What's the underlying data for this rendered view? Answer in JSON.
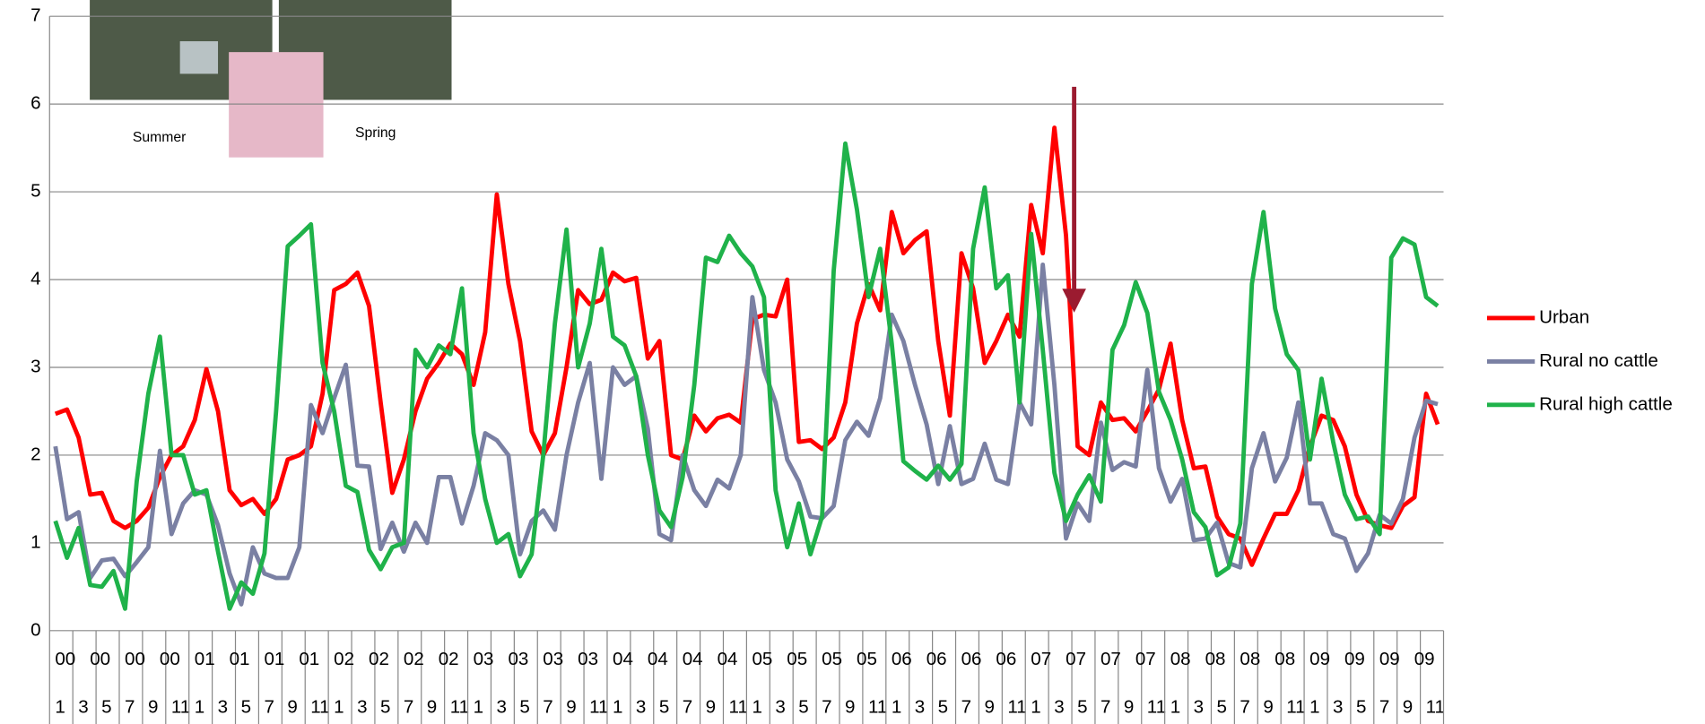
{
  "chart_data": {
    "type": "line",
    "annotations": [
      "Summer",
      "Spring"
    ],
    "x_labels_top": [
      "00",
      "00",
      "00",
      "00",
      "01",
      "01",
      "01",
      "01",
      "02",
      "02",
      "02",
      "02",
      "03",
      "03",
      "03",
      "03",
      "04",
      "04",
      "04",
      "04",
      "05",
      "05",
      "05",
      "05",
      "06",
      "06",
      "06",
      "06",
      "07",
      "07",
      "07",
      "07",
      "08",
      "08",
      "08",
      "08",
      "09",
      "09",
      "09",
      "09"
    ],
    "x_labels_bottom": [
      "1",
      "3",
      "5",
      "7",
      "9",
      "11",
      "1",
      "3",
      "5",
      "7",
      "9",
      "11",
      "1",
      "3",
      "5",
      "7",
      "9",
      "11",
      "1",
      "3",
      "5",
      "7",
      "9",
      "11",
      "1",
      "3",
      "5",
      "7",
      "9",
      "11",
      "1",
      "3",
      "5",
      "7",
      "9",
      "11",
      "1",
      "3",
      "5",
      "7",
      "9",
      "11",
      "1",
      "3",
      "5",
      "7",
      "9",
      "11",
      "1",
      "3",
      "5",
      "7",
      "9",
      "11",
      "1",
      "3",
      "5",
      "7",
      "9",
      "11"
    ],
    "ylim": [
      0,
      7
    ],
    "yticks": [
      0,
      1,
      2,
      3,
      4,
      5,
      6,
      7
    ],
    "grid": true,
    "legend": "right",
    "series": [
      {
        "name": "Urban",
        "color": "#ff0000",
        "values": [
          2.47,
          2.52,
          2.2,
          1.55,
          1.57,
          1.25,
          1.17,
          1.25,
          1.4,
          1.75,
          2.0,
          2.1,
          2.4,
          2.98,
          2.5,
          1.6,
          1.43,
          1.5,
          1.33,
          1.5,
          1.95,
          2.0,
          2.1,
          2.7,
          3.88,
          3.95,
          4.08,
          3.7,
          2.6,
          1.57,
          1.95,
          2.5,
          2.87,
          3.05,
          3.27,
          3.15,
          2.8,
          3.4,
          4.97,
          3.95,
          3.3,
          2.27,
          2.0,
          2.25,
          3.0,
          3.88,
          3.72,
          3.77,
          4.08,
          3.98,
          4.02,
          3.1,
          3.3,
          2.0,
          1.95,
          2.45,
          2.27,
          2.42,
          2.46,
          2.37,
          3.55,
          3.6,
          3.58,
          4.0,
          2.15,
          2.17,
          2.07,
          2.2,
          2.6,
          3.5,
          3.95,
          3.65,
          4.77,
          4.3,
          4.45,
          4.55,
          3.3,
          2.45,
          4.3,
          3.9,
          3.05,
          3.3,
          3.6,
          3.35,
          4.85,
          4.3,
          5.73,
          4.5,
          2.1,
          2.0,
          2.6,
          2.4,
          2.42,
          2.27,
          2.5,
          2.75,
          3.27,
          2.4,
          1.85,
          1.87,
          1.3,
          1.1,
          1.05,
          0.75,
          1.05,
          1.33,
          1.33,
          1.6,
          2.1,
          2.45,
          2.4,
          2.1,
          1.55,
          1.25,
          1.2,
          1.17,
          1.42,
          1.52,
          2.7,
          2.35
        ]
      },
      {
        "name": "Rural no cattle",
        "color": "#7a80a3",
        "values": [
          2.1,
          1.27,
          1.35,
          0.6,
          0.8,
          0.82,
          0.62,
          0.78,
          0.95,
          2.05,
          1.1,
          1.45,
          1.6,
          1.55,
          1.2,
          0.65,
          0.3,
          0.95,
          0.65,
          0.6,
          0.6,
          0.95,
          2.57,
          2.25,
          2.65,
          3.03,
          1.88,
          1.87,
          0.93,
          1.23,
          0.9,
          1.23,
          1.0,
          1.75,
          1.75,
          1.22,
          1.65,
          2.25,
          2.17,
          2.0,
          0.87,
          1.25,
          1.37,
          1.15,
          2.0,
          2.6,
          3.05,
          1.73,
          3.0,
          2.8,
          2.9,
          2.3,
          1.1,
          1.03,
          2.0,
          1.6,
          1.42,
          1.72,
          1.62,
          2.0,
          3.8,
          2.97,
          2.6,
          1.95,
          1.7,
          1.3,
          1.28,
          1.42,
          2.17,
          2.38,
          2.22,
          2.65,
          3.6,
          3.3,
          2.8,
          2.35,
          1.67,
          2.33,
          1.67,
          1.73,
          2.13,
          1.72,
          1.67,
          2.6,
          2.35,
          4.17,
          2.8,
          1.05,
          1.45,
          1.25,
          2.37,
          1.83,
          1.92,
          1.87,
          2.97,
          1.85,
          1.47,
          1.73,
          1.03,
          1.05,
          1.23,
          0.77,
          0.72,
          1.85,
          2.25,
          1.7,
          1.97,
          2.6,
          1.45,
          1.45,
          1.1,
          1.05,
          0.68,
          0.88,
          1.32,
          1.22,
          1.5,
          2.2,
          2.62,
          2.58
        ]
      },
      {
        "name": "Rural high cattle",
        "color": "#1fb24a",
        "values": [
          1.25,
          0.83,
          1.17,
          0.52,
          0.5,
          0.68,
          0.25,
          1.7,
          2.7,
          3.35,
          2.0,
          2.0,
          1.55,
          1.6,
          0.9,
          0.25,
          0.55,
          0.42,
          0.88,
          2.5,
          4.38,
          4.5,
          4.63,
          3.05,
          2.5,
          1.65,
          1.58,
          0.92,
          0.7,
          0.95,
          1.0,
          3.2,
          3.0,
          3.25,
          3.15,
          3.9,
          2.25,
          1.5,
          1.0,
          1.1,
          0.62,
          0.87,
          2.0,
          3.5,
          4.57,
          3.0,
          3.5,
          4.35,
          3.35,
          3.25,
          2.9,
          2.0,
          1.37,
          1.18,
          1.75,
          2.8,
          4.25,
          4.2,
          4.5,
          4.3,
          4.15,
          3.8,
          1.6,
          0.95,
          1.45,
          0.87,
          1.3,
          4.1,
          5.55,
          4.8,
          3.8,
          4.35,
          3.27,
          1.93,
          1.82,
          1.72,
          1.88,
          1.72,
          1.9,
          4.35,
          5.05,
          3.9,
          4.05,
          2.6,
          4.52,
          3.2,
          1.8,
          1.25,
          1.55,
          1.77,
          1.47,
          3.2,
          3.48,
          3.97,
          3.62,
          2.72,
          2.4,
          1.95,
          1.35,
          1.18,
          0.63,
          0.72,
          1.22,
          3.95,
          4.77,
          3.67,
          3.15,
          2.97,
          1.95,
          2.87,
          2.15,
          1.55,
          1.27,
          1.3,
          1.1,
          4.25,
          4.47,
          4.4,
          3.8,
          3.7
        ]
      }
    ]
  }
}
